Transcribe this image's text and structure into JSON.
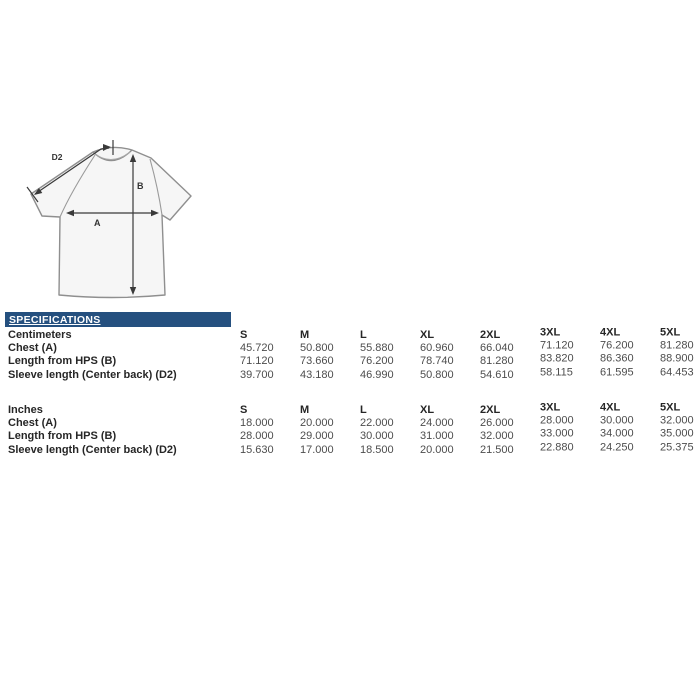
{
  "page": {
    "background": "#ffffff"
  },
  "diagram": {
    "labels": {
      "a": "A",
      "b": "B",
      "d2": "D2"
    }
  },
  "specifications": {
    "title": "SPECIFICATIONS",
    "bar_color": "#25507f"
  },
  "sizes": [
    "S",
    "M",
    "L",
    "XL",
    "2XL",
    "3XL",
    "4XL",
    "5XL"
  ],
  "tables": [
    {
      "unit_label": "Centimeters",
      "rows": [
        {
          "label": "Chest (A)",
          "values": [
            "45.720",
            "50.800",
            "55.880",
            "60.960",
            "66.040",
            "71.120",
            "76.200",
            "81.280"
          ]
        },
        {
          "label": "Length from HPS (B)",
          "values": [
            "71.120",
            "73.660",
            "76.200",
            "78.740",
            "81.280",
            "83.820",
            "86.360",
            "88.900"
          ]
        },
        {
          "label": "Sleeve length (Center back) (D2)",
          "values": [
            "39.700",
            "43.180",
            "46.990",
            "50.800",
            "54.610",
            "58.115",
            "61.595",
            "64.453"
          ]
        }
      ]
    },
    {
      "unit_label": "Inches",
      "rows": [
        {
          "label": "Chest (A)",
          "values": [
            "18.000",
            "20.000",
            "22.000",
            "24.000",
            "26.000",
            "28.000",
            "30.000",
            "32.000"
          ]
        },
        {
          "label": "Length from HPS (B)",
          "values": [
            "28.000",
            "29.000",
            "30.000",
            "31.000",
            "32.000",
            "33.000",
            "34.000",
            "35.000"
          ]
        },
        {
          "label": "Sleeve length (Center back) (D2)",
          "values": [
            "15.630",
            "17.000",
            "18.500",
            "20.000",
            "21.500",
            "22.880",
            "24.250",
            "25.375"
          ]
        }
      ]
    }
  ]
}
